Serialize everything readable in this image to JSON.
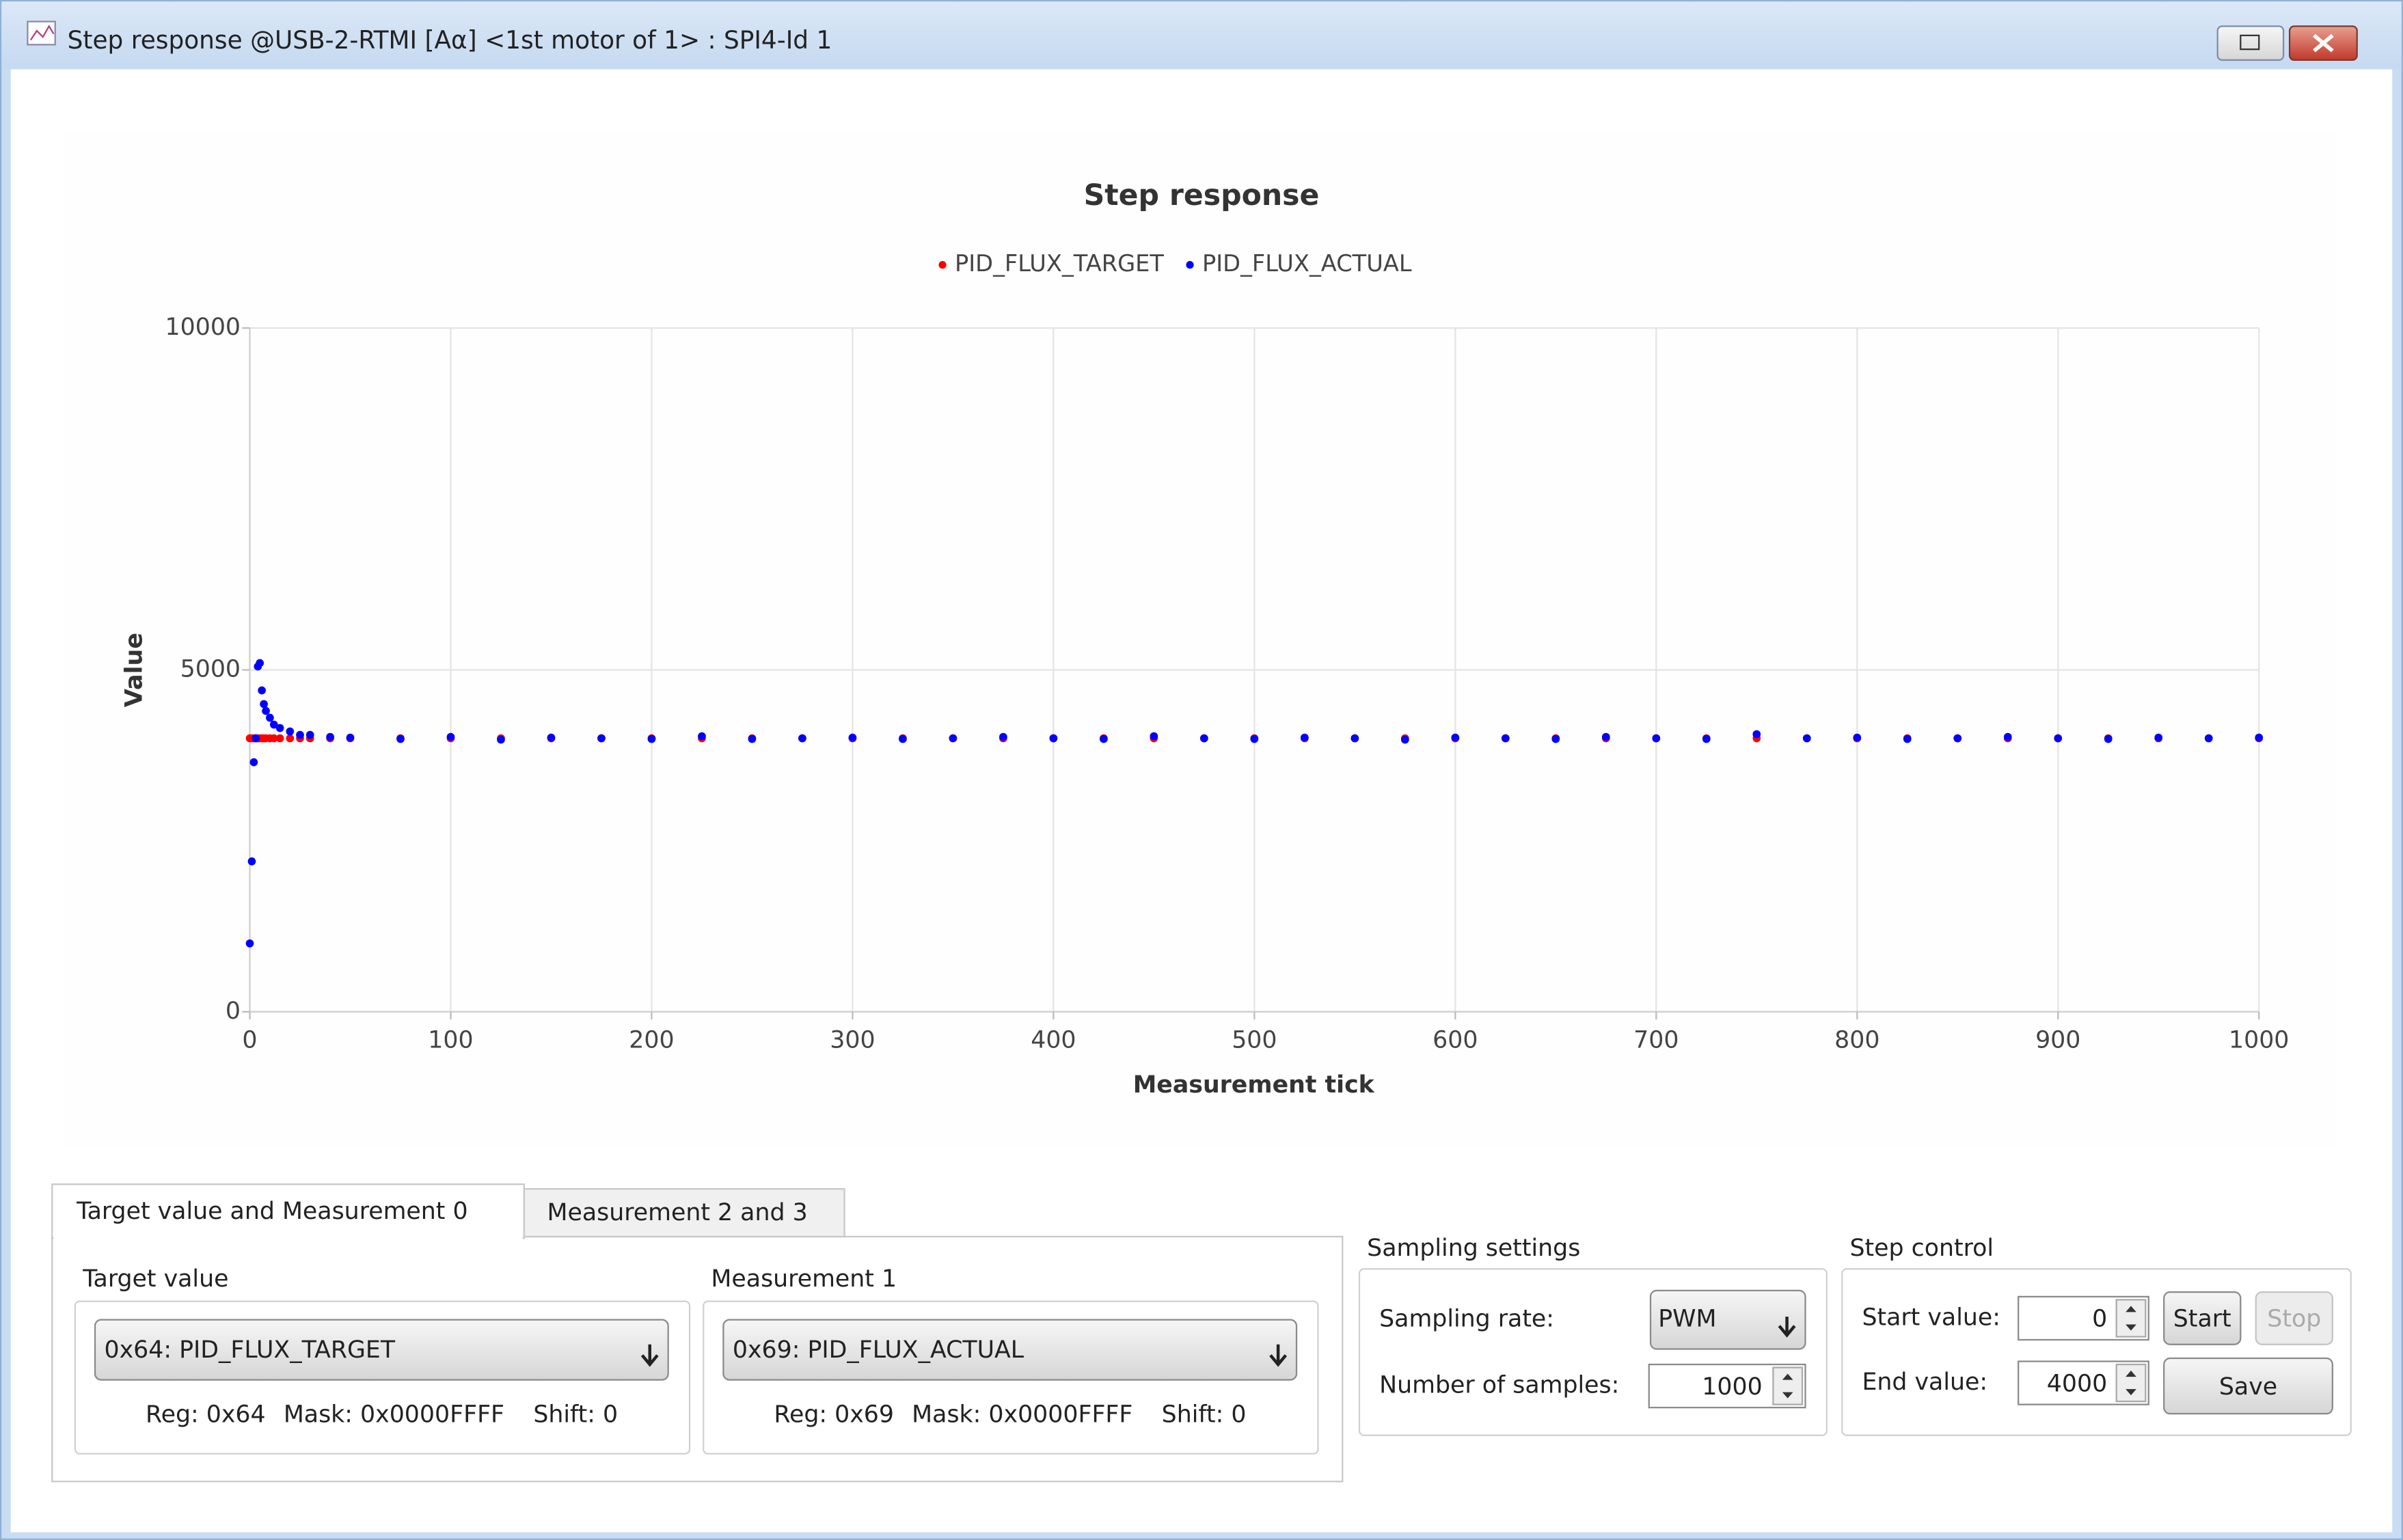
{
  "window": {
    "title": "Step response @USB-2-RTMI [Aα] <1st motor of 1> : SPI4-Id 1"
  },
  "chart_data": {
    "type": "scatter",
    "title": "Step response",
    "x_label": "Measurement tick",
    "y_label": "Value",
    "x": [
      0,
      1,
      2,
      3,
      4,
      5,
      6,
      7,
      8,
      10,
      12,
      15,
      20,
      25,
      30,
      40,
      50,
      75,
      100,
      125,
      150,
      175,
      200,
      225,
      250,
      275,
      300,
      325,
      350,
      375,
      400,
      425,
      450,
      475,
      500,
      525,
      550,
      575,
      600,
      625,
      650,
      675,
      700,
      725,
      750,
      775,
      800,
      825,
      850,
      875,
      900,
      925,
      950,
      975,
      1000
    ],
    "series": [
      {
        "name": "PID_FLUX_TARGET",
        "color": "#ff0000",
        "values": [
          4000,
          4000,
          4000,
          4000,
          4000,
          4000,
          4000,
          4000,
          4000,
          4000,
          4000,
          4000,
          4000,
          4000,
          4000,
          4000,
          4000,
          4000,
          4000,
          4000,
          4000,
          4000,
          4000,
          4000,
          4000,
          4000,
          4000,
          4000,
          4000,
          4000,
          4000,
          4000,
          4000,
          4000,
          4000,
          4000,
          4000,
          4000,
          4000,
          4000,
          4000,
          4000,
          4000,
          4000,
          4000,
          4000,
          4000,
          4000,
          4000,
          4000,
          4000,
          4000,
          4000,
          4000,
          4000
        ]
      },
      {
        "name": "PID_FLUX_ACTUAL",
        "color": "#0000ff",
        "values": [
          1000,
          2200,
          3650,
          4000,
          5050,
          5100,
          4700,
          4500,
          4400,
          4300,
          4200,
          4150,
          4100,
          4050,
          4050,
          4020,
          4010,
          3990,
          4020,
          3980,
          4010,
          4000,
          3990,
          4030,
          3990,
          4000,
          4010,
          3990,
          4000,
          4020,
          4000,
          3990,
          4030,
          4000,
          3990,
          4010,
          4000,
          3980,
          4010,
          4000,
          3990,
          4020,
          4000,
          3990,
          4060,
          4000,
          4010,
          3990,
          4000,
          4020,
          4000,
          3990,
          4010,
          4000,
          4010
        ]
      }
    ],
    "xlim": [
      0,
      1000
    ],
    "xticks": [
      0,
      100,
      200,
      300,
      400,
      500,
      600,
      700,
      800,
      900,
      1000
    ],
    "ylim": [
      0,
      10000
    ],
    "yticks": [
      0,
      5000,
      10000
    ],
    "grid": true,
    "legend": "top"
  },
  "tabs": [
    "Target value and Measurement 0",
    "Measurement 2 and 3"
  ],
  "target_group": {
    "label": "Target value",
    "selection": "0x64: PID_FLUX_TARGET",
    "reg": "Reg: 0x64",
    "mask": "Mask: 0x0000FFFF",
    "shift": "Shift: 0"
  },
  "measurement_group": {
    "label": "Measurement 1",
    "selection": "0x69: PID_FLUX_ACTUAL",
    "reg": "Reg: 0x69",
    "mask": "Mask: 0x0000FFFF",
    "shift": "Shift: 0"
  },
  "sampling": {
    "label": "Sampling settings",
    "rate_label": "Sampling rate:",
    "rate": "PWM",
    "samples_label": "Number of samples:",
    "samples": "1000"
  },
  "step_control": {
    "label": "Step control",
    "start_label": "Start value:",
    "start_value": "0",
    "end_label": "End value:",
    "end_value": "4000",
    "start_button": "Start",
    "stop_button": "Stop",
    "save_button": "Save"
  }
}
